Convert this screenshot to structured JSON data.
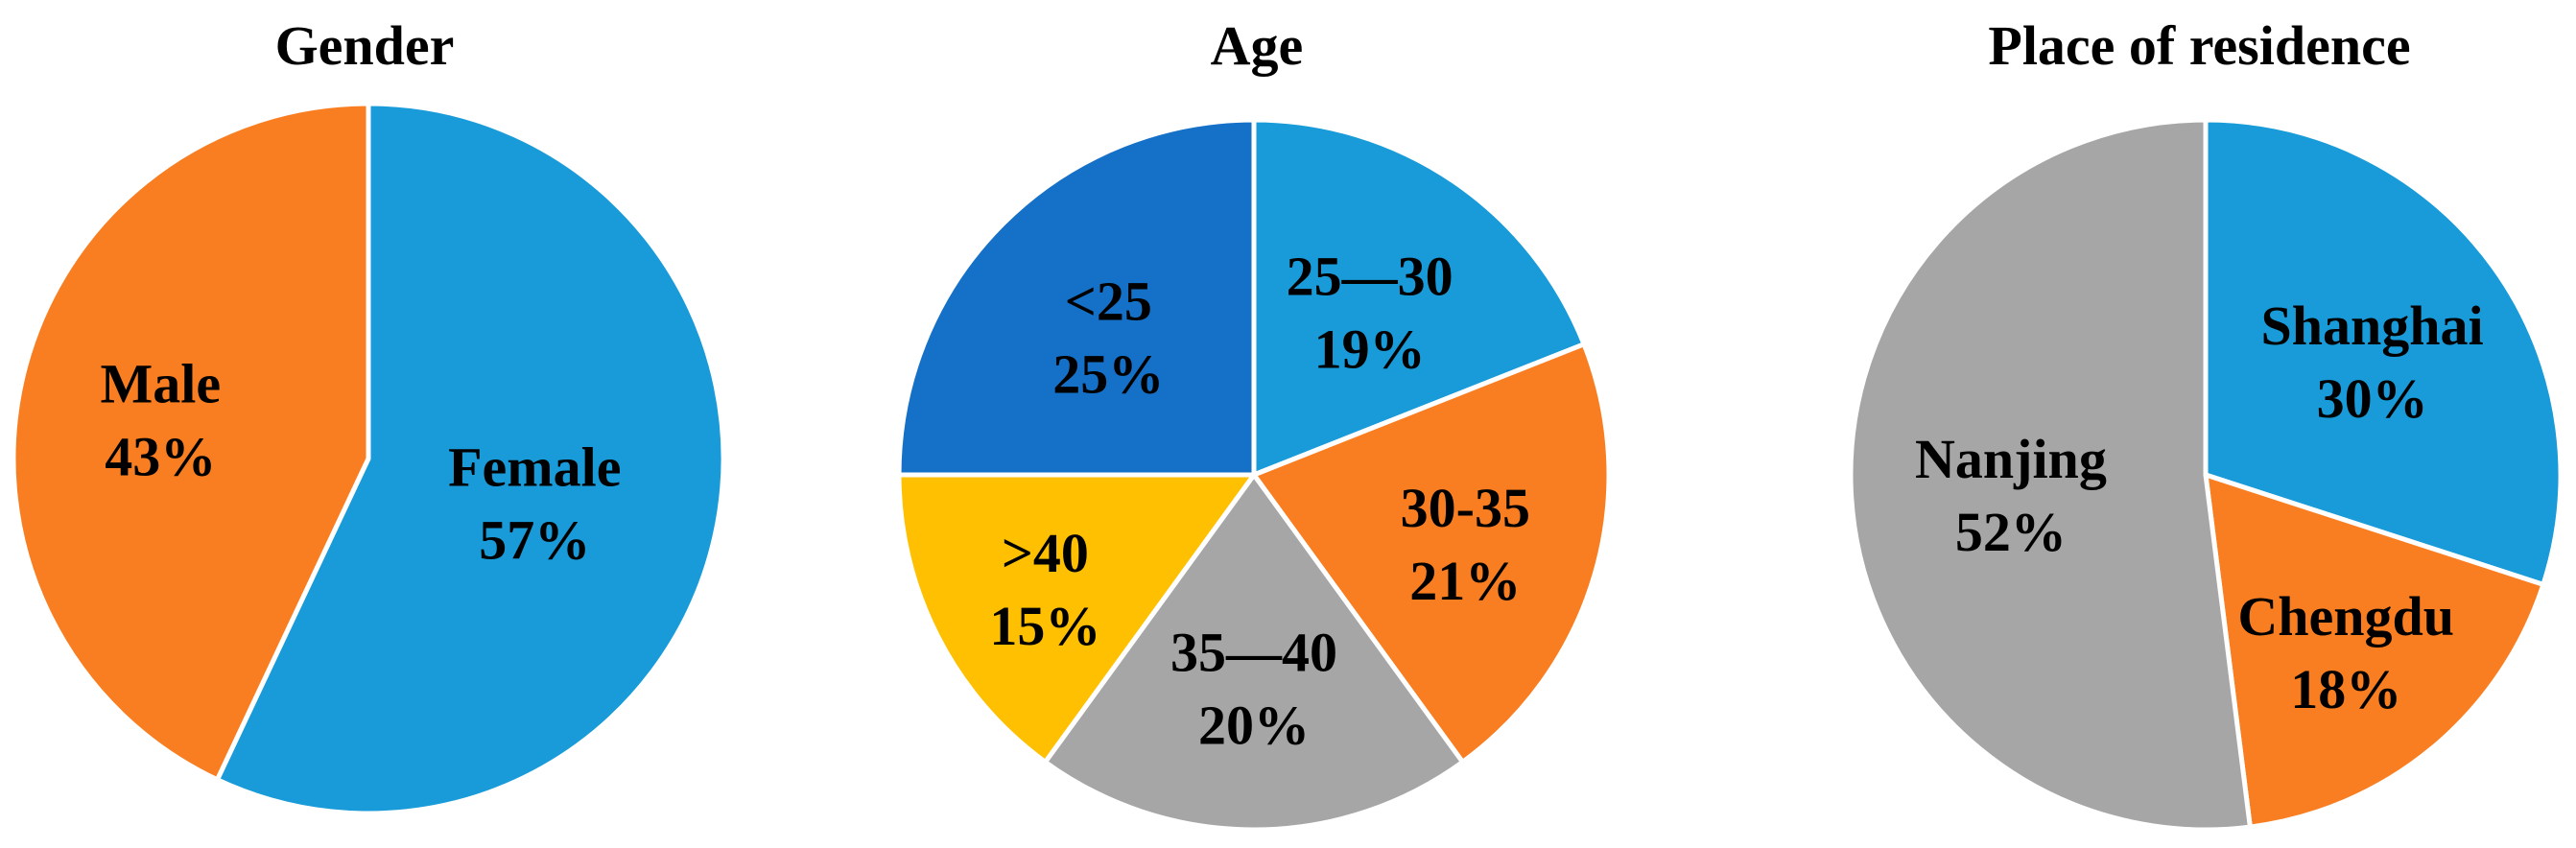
{
  "colors": {
    "blue": "#189bd8",
    "orange": "#f97e21",
    "gray": "#a6a6a6",
    "yellow": "#fec000",
    "dark_blue": "#1570c7",
    "separator": "#ffffff"
  },
  "chart_data": [
    {
      "type": "pie",
      "title": "Gender",
      "start_angle_deg": 0,
      "direction": "clockwise",
      "slices": [
        {
          "label": "Female",
          "value": 57,
          "pct_label": "57%",
          "color": "#189bd8"
        },
        {
          "label": "Male",
          "value": 43,
          "pct_label": "43%",
          "color": "#f97e21"
        }
      ]
    },
    {
      "type": "pie",
      "title": "Age",
      "start_angle_deg": 0,
      "direction": "clockwise",
      "slices": [
        {
          "label": "25—30",
          "value": 19,
          "pct_label": "19%",
          "color": "#189bd8"
        },
        {
          "label": "30-35",
          "value": 21,
          "pct_label": "21%",
          "color": "#f97e21"
        },
        {
          "label": "35—40",
          "value": 20,
          "pct_label": "20%",
          "color": "#a6a6a6"
        },
        {
          "label": ">40",
          "value": 15,
          "pct_label": "15%",
          "color": "#fec000"
        },
        {
          "label": "<25",
          "value": 25,
          "pct_label": "25%",
          "color": "#1570c7"
        }
      ]
    },
    {
      "type": "pie",
      "title": "Place of residence",
      "start_angle_deg": 0,
      "direction": "clockwise",
      "slices": [
        {
          "label": "Shanghai",
          "value": 30,
          "pct_label": "30%",
          "color": "#189bd8"
        },
        {
          "label": "Chengdu",
          "value": 18,
          "pct_label": "18%",
          "color": "#f97e21"
        },
        {
          "label": "Nanjing",
          "value": 52,
          "pct_label": "52%",
          "color": "#a6a6a6"
        }
      ]
    }
  ]
}
